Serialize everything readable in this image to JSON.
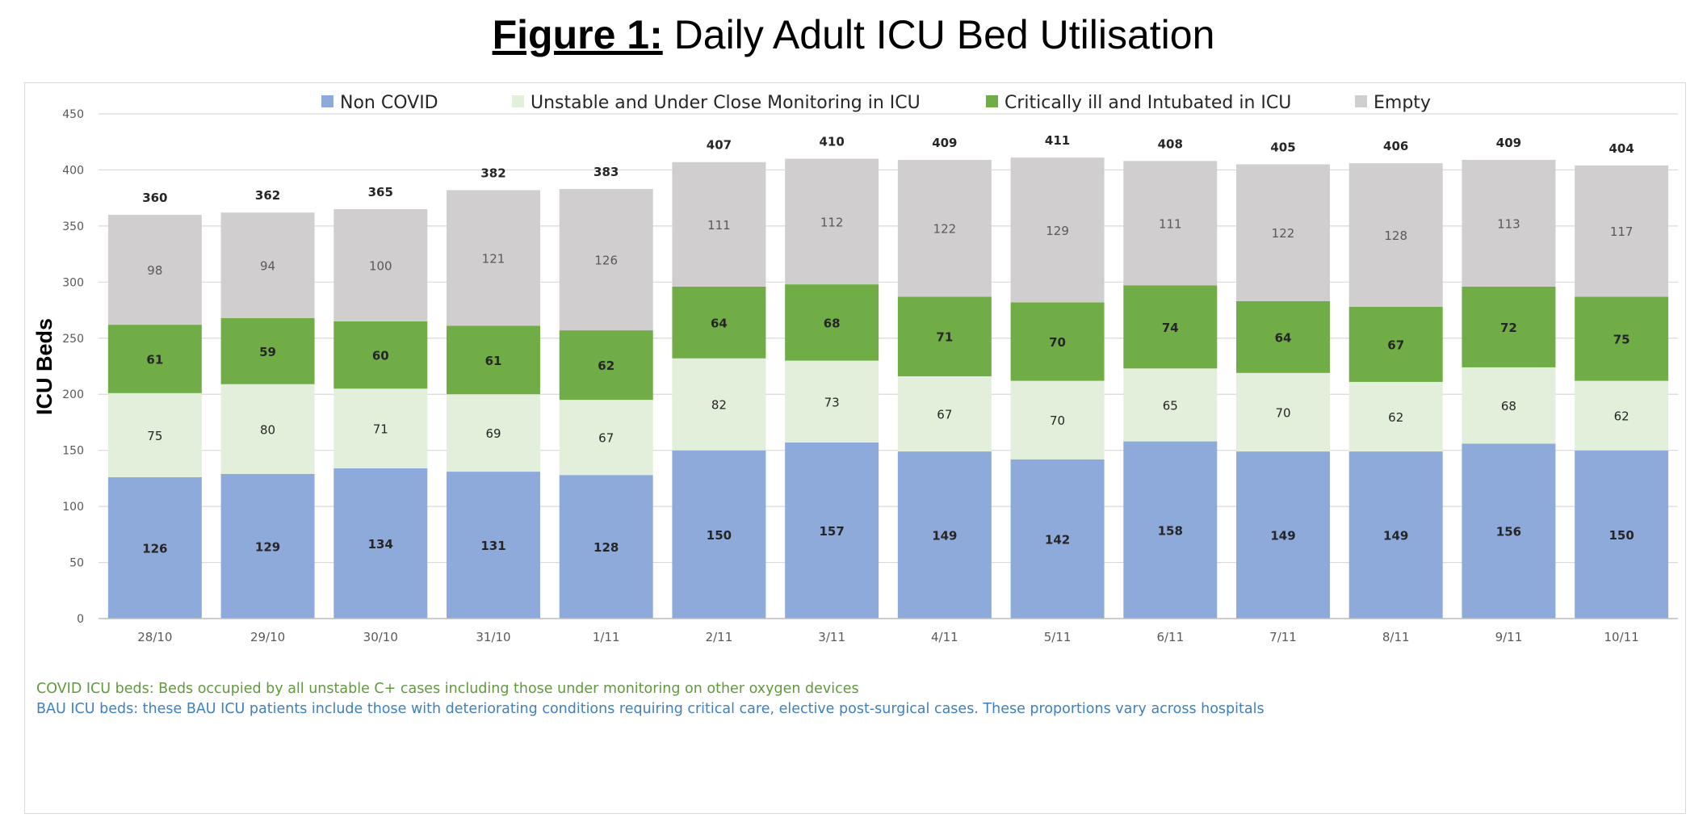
{
  "figure": {
    "label": "Figure 1:",
    "title": "Daily Adult ICU Bed Utilisation"
  },
  "chart_data": {
    "type": "bar",
    "stacked": true,
    "categories": [
      "28/10",
      "29/10",
      "30/10",
      "31/10",
      "1/11",
      "2/11",
      "3/11",
      "4/11",
      "5/11",
      "6/11",
      "7/11",
      "8/11",
      "9/11",
      "10/11"
    ],
    "series": [
      {
        "name": "Non COVID",
        "color": "#8eaadb",
        "values": [
          126,
          129,
          134,
          131,
          128,
          150,
          157,
          149,
          142,
          158,
          149,
          149,
          156,
          150
        ]
      },
      {
        "name": "Unstable and Under Close Monitoring in ICU",
        "color": "#e2efda",
        "values": [
          75,
          80,
          71,
          69,
          67,
          82,
          73,
          67,
          70,
          65,
          70,
          62,
          68,
          62
        ]
      },
      {
        "name": "Critically ill and Intubated in ICU",
        "color": "#70ad47",
        "values": [
          61,
          59,
          60,
          61,
          62,
          64,
          68,
          71,
          70,
          74,
          64,
          67,
          72,
          75
        ]
      },
      {
        "name": "Empty",
        "color": "#d0cece",
        "values": [
          98,
          94,
          100,
          121,
          126,
          111,
          112,
          122,
          129,
          111,
          122,
          128,
          113,
          117
        ]
      }
    ],
    "totals": [
      360,
      362,
      365,
      382,
      383,
      407,
      410,
      409,
      411,
      408,
      405,
      406,
      409,
      404
    ],
    "ylabel": "ICU Beds",
    "ylim": [
      0,
      450
    ],
    "yticks": [
      0,
      50,
      100,
      150,
      200,
      250,
      300,
      350,
      400,
      450
    ],
    "grid": true,
    "legend": "top"
  },
  "notes": {
    "covid": "COVID ICU beds: Beds occupied by all unstable C+ cases including those under monitoring on other oxygen devices",
    "bau": "BAU ICU beds: these BAU ICU patients include those with deteriorating conditions requiring critical care, elective post-surgical cases. These proportions vary across hospitals"
  }
}
